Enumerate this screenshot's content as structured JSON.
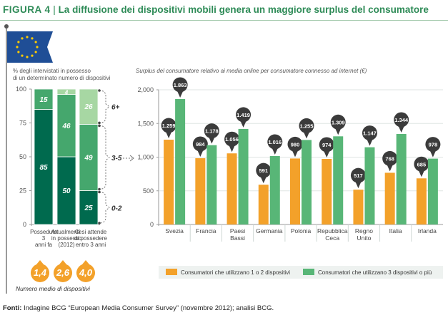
{
  "figure_label": "Figura 4",
  "separator": "|",
  "title": "La diffusione dei dispositivi mobili genera un maggiore surplus del consumatore",
  "footer": {
    "label": "Fonti:",
    "text": "Indagine BCG “European Media Consumer Survey” (novembre 2012); analisi BCG."
  },
  "colors": {
    "dark_green": "#006a4e",
    "mid_green": "#45a76d",
    "light_green": "#a7d7a3",
    "orange": "#f3a12a",
    "green": "#58b677",
    "pin": "#3b3b3b"
  },
  "flag_icon": "eu-flag-icon",
  "chart_data": [
    {
      "type": "bar",
      "stacked": true,
      "ylabel": "% degli intervistati in possesso di un determinato numero di dispositivi",
      "categories": [
        "Posseduto 3 anni fa",
        "Attualmente in possesso (2012)",
        "Ci si attende di possedere entro 3 anni"
      ],
      "series": [
        {
          "name": "0-2",
          "values": [
            85,
            50,
            25
          ],
          "color": "#006a4e"
        },
        {
          "name": "3-5",
          "values": [
            15,
            46,
            49
          ],
          "color": "#45a76d"
        },
        {
          "name": "6+",
          "values": [
            0,
            4,
            26
          ],
          "color": "#a7d7a3"
        }
      ],
      "yticks": [
        0,
        25,
        50,
        75,
        100
      ],
      "ylim": [
        0,
        100
      ],
      "bracket_labels": [
        "6+",
        "3-5",
        "0-2"
      ],
      "bubbles": [
        "1,4",
        "2,6",
        "4,0"
      ],
      "bubble_caption": "Numero medio di dispositivi"
    },
    {
      "type": "bar",
      "ylabel": "Surplus del consumatore relativo ai media online per consumatore connesso ad internet (€)",
      "categories": [
        "Svezia",
        "Francia",
        "Paesi Bassi",
        "Germania",
        "Polonia",
        "Repubblica Ceca",
        "Regno Unito",
        "Italia",
        "Irlanda"
      ],
      "series": [
        {
          "name": "Consumatori che utilizzano 1 o 2 dispositivi",
          "values": [
            1259,
            984,
            1056,
            591,
            980,
            974,
            517,
            768,
            685
          ],
          "labels": [
            "1.259",
            "984",
            "1.056",
            "591",
            "980",
            "974",
            "517",
            "768",
            "685"
          ],
          "color": "#f3a12a"
        },
        {
          "name": "Consumatori che utilizzano 3 dispositivi o più",
          "values": [
            1863,
            1178,
            1419,
            1016,
            1255,
            1309,
            1147,
            1344,
            978
          ],
          "labels": [
            "1.863",
            "1.178",
            "1.419",
            "1.016",
            "1.255",
            "1.309",
            "1.147",
            "1.344",
            "978"
          ],
          "color": "#58b677"
        }
      ],
      "yticks": [
        "0",
        "500",
        "1,000",
        "1,500",
        "2,000"
      ],
      "ylim": [
        0,
        2000
      ],
      "legend_position": "bottom"
    }
  ]
}
